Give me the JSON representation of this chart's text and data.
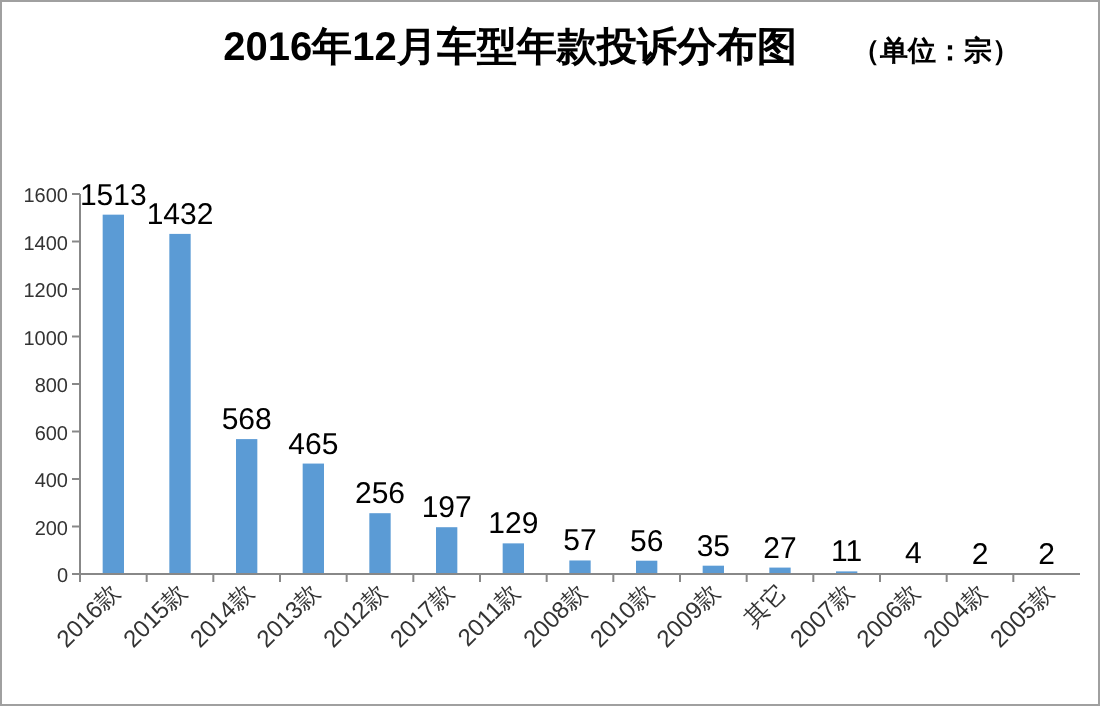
{
  "chart_data": {
    "type": "bar",
    "title": "2016年12月车型年款投诉分布图",
    "subtitle": "（单位：宗）",
    "categories": [
      "2016款",
      "2015款",
      "2014款",
      "2013款",
      "2012款",
      "2017款",
      "2011款",
      "2008款",
      "2010款",
      "2009款",
      "其它",
      "2007款",
      "2006款",
      "2004款",
      "2005款"
    ],
    "values": [
      1513,
      1432,
      568,
      465,
      256,
      197,
      129,
      57,
      56,
      35,
      27,
      11,
      4,
      2,
      2
    ],
    "color": "#5b9bd5",
    "ylim": [
      0,
      1600
    ],
    "yticks": [
      0,
      200,
      400,
      600,
      800,
      1000,
      1200,
      1400,
      1600
    ],
    "data_labels": true
  }
}
